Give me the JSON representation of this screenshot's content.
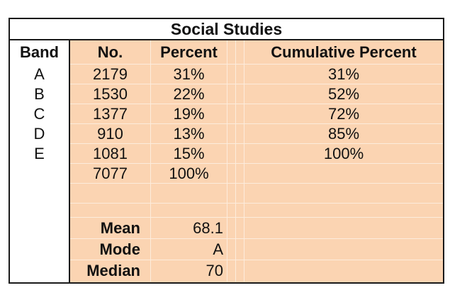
{
  "theme": {
    "fill": "#FBD4B2",
    "border": "#1a1a1a",
    "grid": "rgba(255,255,255,0.55)",
    "text": "#111111"
  },
  "table": {
    "title": "Social Studies",
    "columns": {
      "band": "Band",
      "no": "No.",
      "percent": "Percent",
      "cumulative": "Cumulative Percent"
    },
    "rows": [
      {
        "band": "A",
        "no": "2179",
        "percent": "31%",
        "cumulative": "31%"
      },
      {
        "band": "B",
        "no": "1530",
        "percent": "22%",
        "cumulative": "52%"
      },
      {
        "band": "C",
        "no": "1377",
        "percent": "19%",
        "cumulative": "72%"
      },
      {
        "band": "D",
        "no": "910",
        "percent": "13%",
        "cumulative": "85%"
      },
      {
        "band": "E",
        "no": "1081",
        "percent": "15%",
        "cumulative": "100%"
      }
    ],
    "total": {
      "no": "7077",
      "percent": "100%"
    },
    "stats": [
      {
        "label": "Mean",
        "value": "68.1"
      },
      {
        "label": "Mode",
        "value": "A"
      },
      {
        "label": "Median",
        "value": "70"
      }
    ]
  },
  "chart_data": {
    "type": "table",
    "title": "Social Studies",
    "columns": [
      "Band",
      "No.",
      "Percent",
      "Cumulative Percent"
    ],
    "rows": [
      [
        "A",
        2179,
        "31%",
        "31%"
      ],
      [
        "B",
        1530,
        "22%",
        "52%"
      ],
      [
        "C",
        1377,
        "19%",
        "72%"
      ],
      [
        "D",
        910,
        "13%",
        "85%"
      ],
      [
        "E",
        1081,
        "15%",
        "100%"
      ]
    ],
    "total_no": 7077,
    "total_percent": "100%",
    "stats": {
      "mean": 68.1,
      "mode": "A",
      "median": 70
    }
  }
}
